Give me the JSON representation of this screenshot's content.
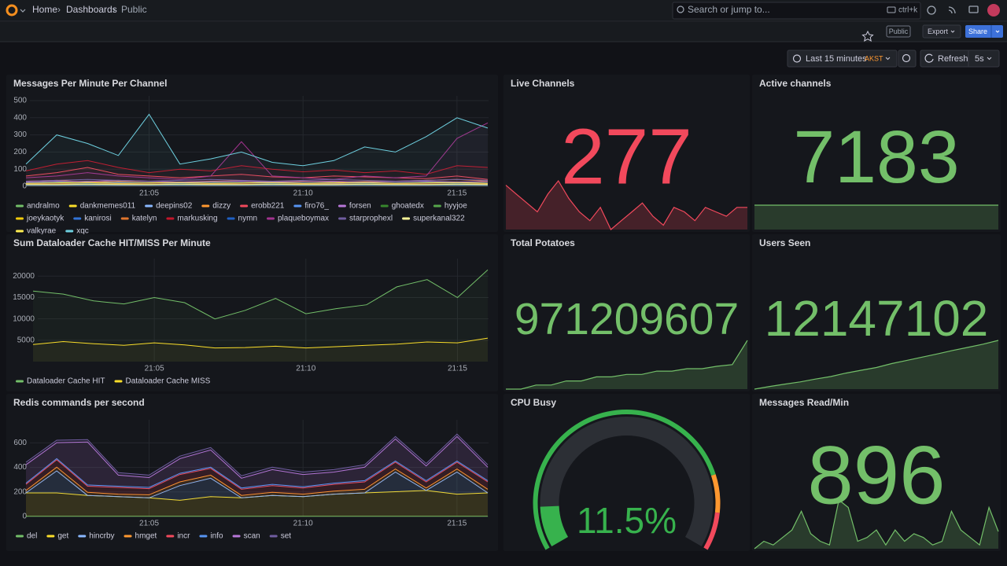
{
  "nav": {
    "breadcrumbs": [
      "Home",
      "Dashboards",
      "Public"
    ],
    "search": "Search or jump to...",
    "shortcut": "ctrl+k"
  },
  "toolbar": {
    "badge": "Public",
    "export": "Export",
    "share": "Share"
  },
  "time_picker": {
    "range": "Last 15 minutes",
    "timezone": "AKST",
    "refresh": "Refresh",
    "interval": "5s"
  },
  "panels": [
    {
      "type": "timeseries",
      "title": "Messages Per Minute Per Channel",
      "x": [
        "21:01",
        "21:02",
        "21:03",
        "21:04",
        "21:05",
        "21:06",
        "21:07",
        "21:08",
        "21:09",
        "21:10",
        "21:11",
        "21:12",
        "21:13",
        "21:14",
        "21:15",
        "21:16"
      ],
      "xticks": [
        "21:05",
        "21:10",
        "21:15"
      ],
      "ylim": [
        0,
        500
      ],
      "yticks": [
        0,
        100,
        200,
        300,
        400,
        500
      ],
      "grid": true,
      "series": [
        {
          "name": "andralmo",
          "color": "#73bf69",
          "values": [
            20,
            25,
            30,
            22,
            18,
            20,
            25,
            30,
            22,
            20,
            18,
            25,
            30,
            28,
            22,
            20
          ]
        },
        {
          "name": "dankmemes011",
          "color": "#fade2a",
          "values": [
            10,
            12,
            15,
            12,
            10,
            12,
            14,
            12,
            10,
            12,
            11,
            13,
            12,
            10,
            12,
            14
          ]
        },
        {
          "name": "deepins02",
          "color": "#8ab8ff",
          "values": [
            15,
            20,
            18,
            25,
            20,
            15,
            18,
            20,
            22,
            18,
            15,
            20,
            18,
            22,
            20,
            18
          ]
        },
        {
          "name": "dizzy",
          "color": "#ff9830",
          "values": [
            30,
            35,
            25,
            30,
            28,
            25,
            30,
            32,
            28,
            30,
            25,
            28,
            30,
            35,
            40,
            30
          ]
        },
        {
          "name": "erobb221",
          "color": "#f2495c",
          "values": [
            60,
            80,
            110,
            70,
            60,
            50,
            60,
            70,
            55,
            50,
            60,
            55,
            50,
            45,
            60,
            40
          ]
        },
        {
          "name": "firo76_",
          "color": "#5794f2",
          "values": [
            10,
            8,
            12,
            10,
            8,
            10,
            12,
            10,
            8,
            10,
            12,
            10,
            8,
            10,
            12,
            10
          ]
        },
        {
          "name": "forsen",
          "color": "#b877d9",
          "values": [
            25,
            30,
            28,
            35,
            30,
            25,
            28,
            30,
            25,
            28,
            30,
            25,
            28,
            30,
            25,
            28
          ]
        },
        {
          "name": "ghoatedx",
          "color": "#37872d",
          "values": [
            5,
            6,
            5,
            7,
            6,
            5,
            6,
            5,
            7,
            6,
            5,
            6,
            5,
            7,
            6,
            5
          ]
        },
        {
          "name": "hyyjoe",
          "color": "#56a64b",
          "values": [
            8,
            10,
            9,
            8,
            10,
            9,
            8,
            10,
            9,
            8,
            10,
            9,
            8,
            10,
            9,
            8
          ]
        },
        {
          "name": "joeykaotyk",
          "color": "#f2cc0c",
          "values": [
            12,
            10,
            14,
            12,
            10,
            14,
            12,
            10,
            14,
            12,
            10,
            14,
            12,
            10,
            14,
            12
          ]
        },
        {
          "name": "kanirosi",
          "color": "#3274d9",
          "values": [
            5,
            5,
            6,
            5,
            5,
            6,
            5,
            5,
            6,
            5,
            5,
            6,
            5,
            5,
            6,
            5
          ]
        },
        {
          "name": "katelyn",
          "color": "#e0752d",
          "values": [
            15,
            18,
            20,
            15,
            18,
            20,
            15,
            18,
            20,
            15,
            18,
            20,
            15,
            18,
            20,
            15
          ]
        },
        {
          "name": "markusking",
          "color": "#c4162a",
          "values": [
            90,
            130,
            150,
            110,
            80,
            100,
            90,
            120,
            100,
            85,
            95,
            80,
            90,
            70,
            120,
            110
          ]
        },
        {
          "name": "nymn",
          "color": "#1f60c4",
          "values": [
            20,
            22,
            18,
            20,
            22,
            18,
            20,
            22,
            18,
            20,
            22,
            18,
            20,
            22,
            18,
            20
          ]
        },
        {
          "name": "plaqueboymax",
          "color": "#a3338f",
          "values": [
            50,
            60,
            80,
            60,
            50,
            40,
            60,
            260,
            60,
            50,
            40,
            60,
            50,
            60,
            280,
            370
          ]
        },
        {
          "name": "starprophexl",
          "color": "#705da0",
          "values": [
            30,
            35,
            40,
            35,
            30,
            35,
            40,
            35,
            30,
            35,
            40,
            35,
            30,
            35,
            40,
            35
          ]
        },
        {
          "name": "superkanal322",
          "color": "#fff899",
          "values": [
            10,
            10,
            12,
            10,
            10,
            12,
            10,
            10,
            12,
            10,
            10,
            12,
            10,
            10,
            12,
            10
          ]
        },
        {
          "name": "valkyrae",
          "color": "#ffee52",
          "values": [
            18,
            20,
            22,
            18,
            20,
            22,
            18,
            20,
            22,
            18,
            20,
            22,
            18,
            20,
            22,
            18
          ]
        },
        {
          "name": "xqc",
          "color": "#6ed0e0",
          "values": [
            130,
            300,
            250,
            180,
            420,
            130,
            160,
            200,
            140,
            120,
            150,
            230,
            200,
            290,
            400,
            340
          ]
        }
      ]
    },
    {
      "type": "stat",
      "title": "Live Channels",
      "value": 277,
      "color": "#f2495c",
      "spark": [
        282,
        280,
        278,
        276,
        280,
        283,
        279,
        276,
        274,
        277,
        272,
        274,
        276,
        278,
        275,
        273,
        277,
        276,
        274,
        277,
        276,
        275,
        277,
        277
      ]
    },
    {
      "type": "stat",
      "title": "Active channels",
      "value": 7183,
      "color": "#73bf69",
      "spark": [
        7183,
        7183,
        7183,
        7183,
        7183,
        7183,
        7183,
        7183,
        7183,
        7183
      ]
    },
    {
      "type": "timeseries",
      "title": "Sum Dataloader Cache HIT/MISS Per Minute",
      "x": [
        "21:01",
        "21:02",
        "21:03",
        "21:04",
        "21:05",
        "21:06",
        "21:07",
        "21:08",
        "21:09",
        "21:10",
        "21:11",
        "21:12",
        "21:13",
        "21:14",
        "21:15",
        "21:16"
      ],
      "xticks": [
        "21:05",
        "21:10",
        "21:15"
      ],
      "ylim": [
        0,
        23000
      ],
      "yticks": [
        5000,
        10000,
        15000,
        20000
      ],
      "grid": true,
      "series": [
        {
          "name": "Dataloader Cache HIT",
          "color": "#73bf69",
          "values": [
            16500,
            15800,
            14200,
            13500,
            15000,
            13800,
            10000,
            12000,
            14800,
            11200,
            12400,
            13300,
            17500,
            19200,
            15000,
            21500
          ]
        },
        {
          "name": "Dataloader Cache MISS",
          "color": "#fade2a",
          "values": [
            4000,
            4700,
            4200,
            3800,
            4400,
            3900,
            3200,
            3300,
            3600,
            3200,
            3500,
            3800,
            4100,
            4600,
            4400,
            5500
          ]
        }
      ]
    },
    {
      "type": "stat",
      "title": "Total Potatoes",
      "value": 971209607,
      "color": "#73bf69",
      "spark": [
        971150000,
        971150000,
        971155000,
        971155000,
        971160000,
        971160000,
        971165000,
        971165000,
        971168000,
        971168000,
        971172000,
        971172000,
        971175000,
        971175000,
        971178000,
        971180000,
        971209607
      ]
    },
    {
      "type": "stat",
      "title": "Users Seen",
      "value": 12147102,
      "color": "#73bf69",
      "spark": [
        12120000,
        12121500,
        12122800,
        12124000,
        12125600,
        12127000,
        12128900,
        12130500,
        12132000,
        12134200,
        12136000,
        12137800,
        12139600,
        12141500,
        12143200,
        12145000,
        12147102
      ]
    },
    {
      "type": "timeseries",
      "title": "Redis commands per second",
      "stacked": true,
      "x": [
        "21:01",
        "21:02",
        "21:03",
        "21:04",
        "21:05",
        "21:06",
        "21:07",
        "21:08",
        "21:09",
        "21:10",
        "21:11",
        "21:12",
        "21:13",
        "21:14",
        "21:15",
        "21:16"
      ],
      "xticks": [
        "21:05",
        "21:10",
        "21:15"
      ],
      "ylim": [
        0,
        750
      ],
      "yticks": [
        0,
        200,
        400,
        600
      ],
      "grid": true,
      "series": [
        {
          "name": "del",
          "color": "#73bf69",
          "values": [
            2,
            2,
            2,
            2,
            2,
            2,
            2,
            2,
            2,
            2,
            2,
            2,
            2,
            2,
            2,
            2
          ]
        },
        {
          "name": "get",
          "color": "#fade2a",
          "values": [
            190,
            190,
            170,
            160,
            150,
            130,
            160,
            150,
            170,
            160,
            180,
            190,
            200,
            210,
            180,
            190
          ]
        },
        {
          "name": "hincrby",
          "color": "#8ab8ff",
          "values": [
            0,
            180,
            0,
            0,
            0,
            120,
            150,
            0,
            0,
            0,
            0,
            0,
            160,
            0,
            180,
            0
          ]
        },
        {
          "name": "hmget",
          "color": "#ff9830",
          "values": [
            20,
            30,
            25,
            20,
            25,
            30,
            25,
            20,
            25,
            20,
            25,
            30,
            25,
            20,
            25,
            30
          ]
        },
        {
          "name": "incr",
          "color": "#f2495c",
          "values": [
            50,
            60,
            50,
            55,
            50,
            60,
            55,
            50,
            55,
            50,
            55,
            60,
            55,
            50,
            55,
            60
          ]
        },
        {
          "name": "info",
          "color": "#5794f2",
          "values": [
            10,
            10,
            10,
            10,
            10,
            10,
            10,
            10,
            10,
            10,
            10,
            10,
            10,
            10,
            10,
            10
          ]
        },
        {
          "name": "scan",
          "color": "#b877d9",
          "values": [
            150,
            130,
            350,
            90,
            80,
            120,
            140,
            80,
            120,
            100,
            90,
            110,
            180,
            120,
            200,
            110
          ]
        },
        {
          "name": "set",
          "color": "#705da0",
          "values": [
            20,
            20,
            20,
            20,
            20,
            20,
            20,
            20,
            20,
            20,
            20,
            20,
            20,
            20,
            20,
            20
          ]
        }
      ]
    },
    {
      "type": "gauge",
      "title": "CPU Busy",
      "value": 11.5,
      "value_label": "11.5%",
      "min": 0,
      "max": 100,
      "color": "#37b24d",
      "thresholds": [
        {
          "value": 80,
          "color": "#ff9830"
        },
        {
          "value": 90,
          "color": "#f2495c"
        }
      ]
    },
    {
      "type": "stat",
      "title": "Messages Read/Min",
      "value": 896,
      "color": "#73bf69",
      "spark": [
        850,
        870,
        860,
        880,
        900,
        950,
        890,
        870,
        860,
        980,
        960,
        870,
        880,
        900,
        860,
        900,
        870,
        890,
        880,
        860,
        870,
        950,
        900,
        880,
        860,
        960,
        896
      ]
    }
  ]
}
